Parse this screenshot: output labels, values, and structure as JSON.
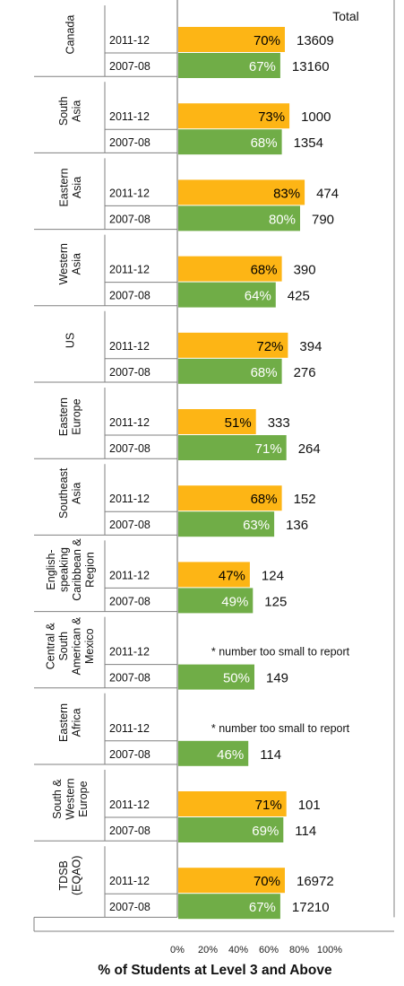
{
  "chart_data": {
    "type": "bar",
    "orientation": "horizontal",
    "xlabel": "% of Students at Level 3 and Above",
    "total_header": "Total",
    "xlim": [
      0,
      100
    ],
    "xticks": [
      "0%",
      "20%",
      "40%",
      "60%",
      "80%",
      "100%"
    ],
    "colors": {
      "2011-12": "#FDB515",
      "2007-08": "#70AD47"
    },
    "pct_text_colors": {
      "2011-12": "#000000",
      "2007-08": "#ffffff"
    },
    "groups": [
      {
        "label": [
          "Canada"
        ],
        "bars": [
          {
            "year": "2011-12",
            "value": 70,
            "label": "70%",
            "total": "13609"
          },
          {
            "year": "2007-08",
            "value": 67,
            "label": "67%",
            "total": "13160"
          }
        ]
      },
      {
        "label": [
          "South",
          "Asia"
        ],
        "bars": [
          {
            "year": "2011-12",
            "value": 73,
            "label": "73%",
            "total": "1000"
          },
          {
            "year": "2007-08",
            "value": 68,
            "label": "68%",
            "total": "1354"
          }
        ]
      },
      {
        "label": [
          "Eastern",
          "Asia"
        ],
        "bars": [
          {
            "year": "2011-12",
            "value": 83,
            "label": "83%",
            "total": "474"
          },
          {
            "year": "2007-08",
            "value": 80,
            "label": "80%",
            "total": "790"
          }
        ]
      },
      {
        "label": [
          "Western",
          "Asia"
        ],
        "bars": [
          {
            "year": "2011-12",
            "value": 68,
            "label": "68%",
            "total": "390"
          },
          {
            "year": "2007-08",
            "value": 64,
            "label": "64%",
            "total": "425"
          }
        ]
      },
      {
        "label": [
          "US"
        ],
        "bars": [
          {
            "year": "2011-12",
            "value": 72,
            "label": "72%",
            "total": "394"
          },
          {
            "year": "2007-08",
            "value": 68,
            "label": "68%",
            "total": "276"
          }
        ]
      },
      {
        "label": [
          "Eastern",
          "Europe"
        ],
        "bars": [
          {
            "year": "2011-12",
            "value": 51,
            "label": "51%",
            "total": "333"
          },
          {
            "year": "2007-08",
            "value": 71,
            "label": "71%",
            "total": "264"
          }
        ]
      },
      {
        "label": [
          "Southeast",
          "Asia"
        ],
        "bars": [
          {
            "year": "2011-12",
            "value": 68,
            "label": "68%",
            "total": "152"
          },
          {
            "year": "2007-08",
            "value": 63,
            "label": "63%",
            "total": "136"
          }
        ]
      },
      {
        "label": [
          "English-",
          "speaking",
          "Caribbean &",
          "Region"
        ],
        "bars": [
          {
            "year": "2011-12",
            "value": 47,
            "label": "47%",
            "total": "124"
          },
          {
            "year": "2007-08",
            "value": 49,
            "label": "49%",
            "total": "125"
          }
        ]
      },
      {
        "label": [
          "Central &",
          "South",
          "American &",
          "Mexico"
        ],
        "bars": [
          {
            "year": "2011-12",
            "value": null,
            "note": "* number too small to report"
          },
          {
            "year": "2007-08",
            "value": 50,
            "label": "50%",
            "total": "149"
          }
        ]
      },
      {
        "label": [
          "Eastern",
          "Africa"
        ],
        "bars": [
          {
            "year": "2011-12",
            "value": null,
            "note": "* number too small to report"
          },
          {
            "year": "2007-08",
            "value": 46,
            "label": "46%",
            "total": "114"
          }
        ]
      },
      {
        "label": [
          "South &",
          "Western",
          "Europe"
        ],
        "bars": [
          {
            "year": "2011-12",
            "value": 71,
            "label": "71%",
            "total": "101"
          },
          {
            "year": "2007-08",
            "value": 69,
            "label": "69%",
            "total": "114"
          }
        ]
      },
      {
        "label": [
          "TDSB",
          "(EQAO)"
        ],
        "bars": [
          {
            "year": "2011-12",
            "value": 70,
            "label": "70%",
            "total": "16972"
          },
          {
            "year": "2007-08",
            "value": 67,
            "label": "67%",
            "total": "17210"
          }
        ]
      }
    ]
  }
}
